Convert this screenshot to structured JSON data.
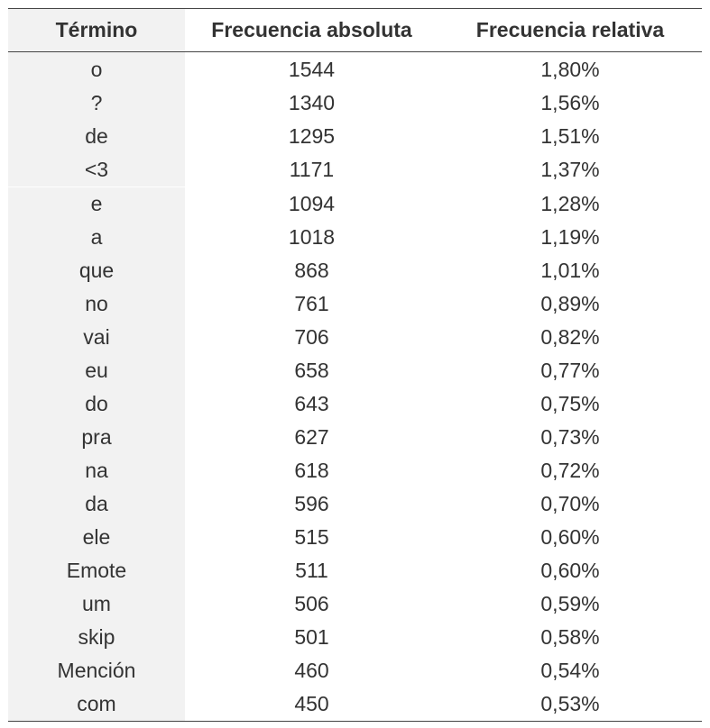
{
  "table": {
    "headers": [
      "Término",
      "Frecuencia absoluta",
      "Frecuencia relativa"
    ],
    "rows": [
      [
        "o",
        "1544",
        "1,80%"
      ],
      [
        "?",
        "1340",
        "1,56%"
      ],
      [
        "de",
        "1295",
        "1,51%"
      ],
      [
        "<3",
        "1171",
        "1,37%"
      ],
      [
        "e",
        "1094",
        "1,28%"
      ],
      [
        "a",
        "1018",
        "1,19%"
      ],
      [
        "que",
        "868",
        "1,01%"
      ],
      [
        "no",
        "761",
        "0,89%"
      ],
      [
        "vai",
        "706",
        "0,82%"
      ],
      [
        "eu",
        "658",
        "0,77%"
      ],
      [
        "do",
        "643",
        "0,75%"
      ],
      [
        "pra",
        "627",
        "0,73%"
      ],
      [
        "na",
        "618",
        "0,72%"
      ],
      [
        "da",
        "596",
        "0,70%"
      ],
      [
        "ele",
        "515",
        "0,60%"
      ],
      [
        "Emote",
        "511",
        "0,60%"
      ],
      [
        "um",
        "506",
        "0,59%"
      ],
      [
        "skip",
        "501",
        "0,58%"
      ],
      [
        "Mención",
        "460",
        "0,54%"
      ],
      [
        "com",
        "450",
        "0,53%"
      ]
    ]
  }
}
